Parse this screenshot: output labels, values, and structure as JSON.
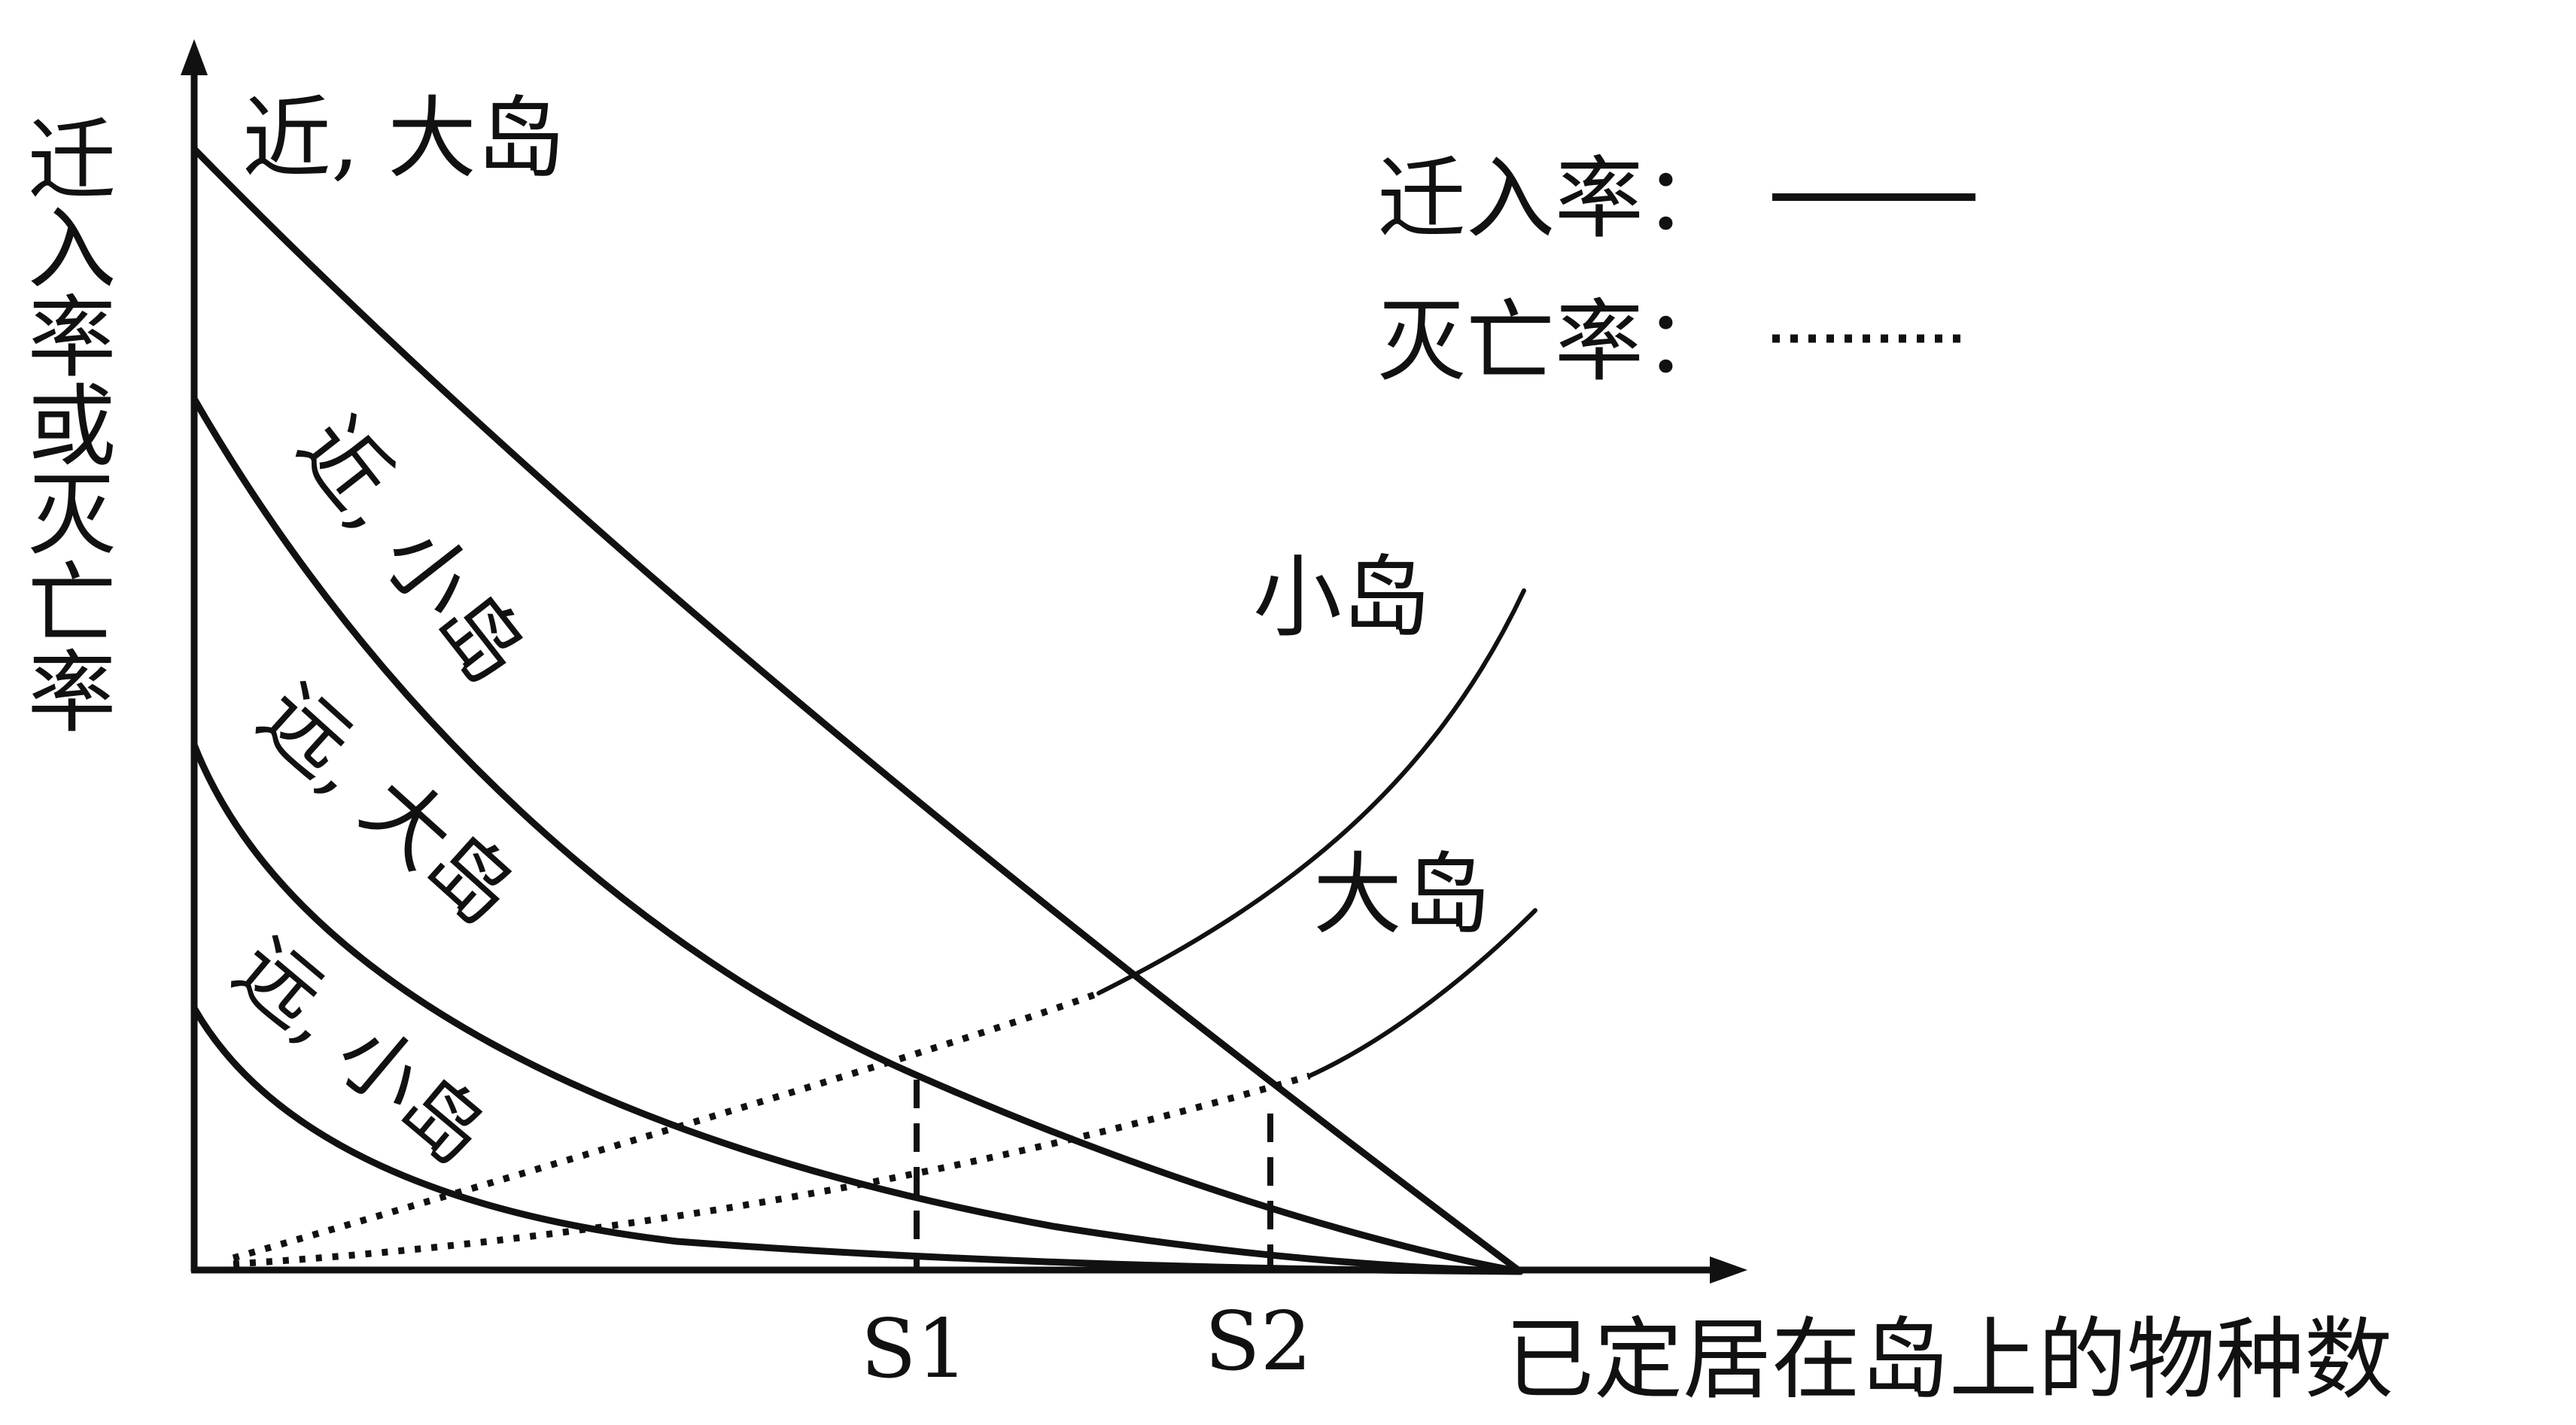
{
  "y_axis_label": "迁入率或灭亡率",
  "x_axis_label": "已定居在岛上的物种数",
  "x_marks": [
    "S1",
    "S2"
  ],
  "legend": {
    "immigration_label": "迁入率：",
    "extinction_label": "灭亡率："
  },
  "curve_labels": {
    "near_large": "近, 大岛",
    "near_small": "近, 小岛",
    "far_large": "远, 大岛",
    "far_small": "远, 小岛",
    "small_island": "小岛",
    "large_island": "大岛"
  },
  "colors": {
    "line": "#111111",
    "background": "#ffffff"
  }
}
